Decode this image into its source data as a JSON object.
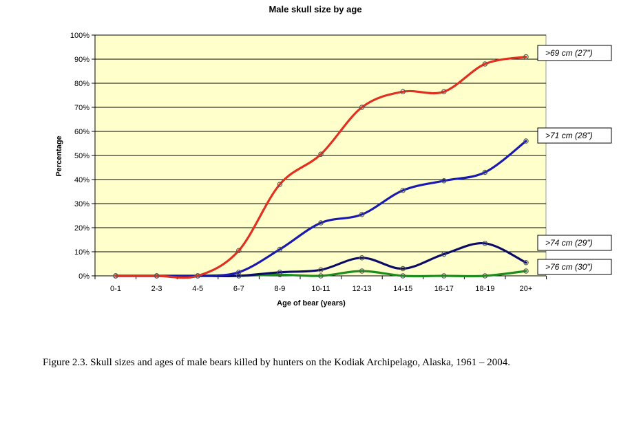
{
  "caption": "Figure 2.3.  Skull sizes and ages of male bears killed by hunters on the Kodiak Archipelago, Alaska, 1961 – 2004.",
  "chart_data": {
    "type": "line",
    "title": "Male skull size by age",
    "xlabel": "Age of bear (years)",
    "ylabel": "Percentage",
    "categories": [
      "0-1",
      "2-3",
      "4-5",
      "6-7",
      "8-9",
      "10-11",
      "12-13",
      "14-15",
      "16-17",
      "18-19",
      "20+"
    ],
    "ylim": [
      0,
      100
    ],
    "yticks": [
      "0%",
      "10%",
      "20%",
      "30%",
      "40%",
      "50%",
      "60%",
      "70%",
      "80%",
      "90%",
      "100%"
    ],
    "grid": true,
    "plot_background": "#ffffcc",
    "legend": "labels at right end of each line",
    "series": [
      {
        "name": ">69 cm (27\")",
        "color": "#e03020",
        "values": [
          0,
          0,
          0,
          10.5,
          38,
          50.5,
          70,
          76.5,
          76.5,
          88,
          91
        ]
      },
      {
        "name": ">71 cm (28\")",
        "color": "#1a1ab0",
        "values": [
          0,
          0,
          0,
          1.5,
          11,
          22,
          25.5,
          35.5,
          39.5,
          43,
          56
        ]
      },
      {
        "name": ">74 cm (29\")",
        "color": "#0c0c66",
        "values": [
          0,
          0,
          0,
          0,
          1.5,
          2.5,
          7.5,
          3,
          9,
          13.5,
          5.5
        ]
      },
      {
        "name": ">76 cm (30\")",
        "color": "#1e8c1e",
        "values": [
          0,
          0,
          0,
          0,
          0.5,
          0,
          2,
          0,
          0,
          0,
          2
        ]
      }
    ]
  }
}
